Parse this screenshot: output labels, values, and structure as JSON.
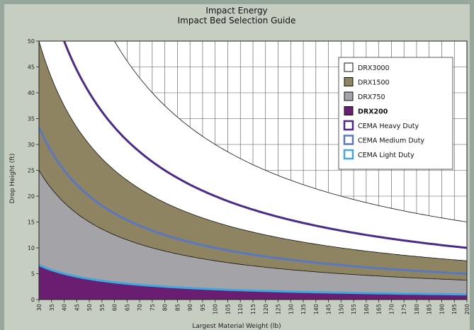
{
  "chart_data": {
    "type": "area",
    "title": "Impact Energy",
    "subtitle": "Impact Bed Selection Guide",
    "xlabel": "Largest Material Weight (lb)",
    "ylabel": "Drop Height (ft)",
    "xlim": [
      30,
      200
    ],
    "ylim": [
      0,
      50
    ],
    "x_ticks": [
      30,
      35,
      40,
      45,
      50,
      55,
      60,
      65,
      70,
      75,
      80,
      85,
      90,
      95,
      100,
      105,
      110,
      115,
      120,
      125,
      130,
      135,
      140,
      145,
      150,
      155,
      160,
      165,
      170,
      175,
      180,
      185,
      190,
      195,
      200
    ],
    "y_ticks": [
      0,
      5,
      10,
      15,
      20,
      25,
      30,
      35,
      40,
      45,
      50
    ],
    "grid": true,
    "legend_position": "top-right",
    "bands": [
      {
        "name": "DRX3000",
        "color": "#ffffff",
        "energy_ft_lb": 3000
      },
      {
        "name": "DRX1500",
        "color": "#8e8462",
        "energy_ft_lb": 1500
      },
      {
        "name": "DRX750",
        "color": "#a4a4a8",
        "energy_ft_lb": 750
      },
      {
        "name": "DRX200",
        "color": "#6a1e72",
        "energy_ft_lb": 200,
        "bold": true
      }
    ],
    "lines": [
      {
        "name": "CEMA Heavy Duty",
        "color": "#4a2a8a",
        "energy_ft_lb": 2000
      },
      {
        "name": "CEMA Medium Duty",
        "color": "#5a78c0",
        "energy_ft_lb": 1000
      },
      {
        "name": "CEMA Light Duty",
        "color": "#40a8e0",
        "energy_ft_lb": 200
      }
    ]
  }
}
